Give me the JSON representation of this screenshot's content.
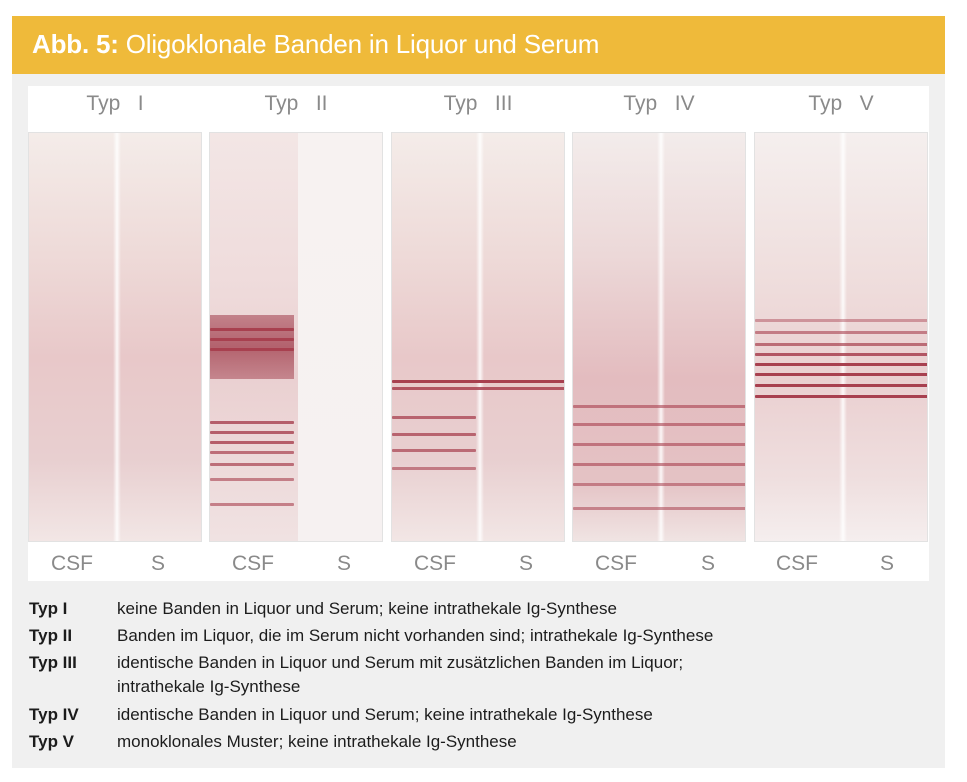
{
  "figure": {
    "title_prefix": "Abb. 5:",
    "title_text": "Oligoklonale Banden in Liquor und Serum",
    "colors": {
      "title_bar": "#efba3a",
      "background": "#f0f0f0",
      "band": "#a8404f"
    }
  },
  "panels": [
    {
      "label": "Typ   I",
      "lanes": [
        "CSF",
        "S"
      ]
    },
    {
      "label": "Typ   II",
      "lanes": [
        "CSF",
        "S"
      ]
    },
    {
      "label": "Typ   III",
      "lanes": [
        "CSF",
        "S"
      ]
    },
    {
      "label": "Typ   IV",
      "lanes": [
        "CSF",
        "S"
      ]
    },
    {
      "label": "Typ   V",
      "lanes": [
        "CSF",
        "S"
      ]
    }
  ],
  "legend": [
    {
      "term": "Typ I",
      "text": "keine Banden in Liquor und Serum; keine intrathekale Ig-Synthese"
    },
    {
      "term": "Typ II",
      "text": "Banden im Liquor, die im Serum nicht vorhanden sind; intrathekale Ig-Synthese"
    },
    {
      "term": "Typ III",
      "text": "identische Banden in Liquor und Serum mit zusätzlichen Banden im Liquor;",
      "text_line2": "intrathekale Ig-Synthese"
    },
    {
      "term": "Typ IV",
      "text": "identische Banden in Liquor und Serum; keine intrathekale Ig-Synthese"
    },
    {
      "term": "Typ V",
      "text": "monoklonales Muster; keine intrathekale Ig-Synthese"
    }
  ]
}
